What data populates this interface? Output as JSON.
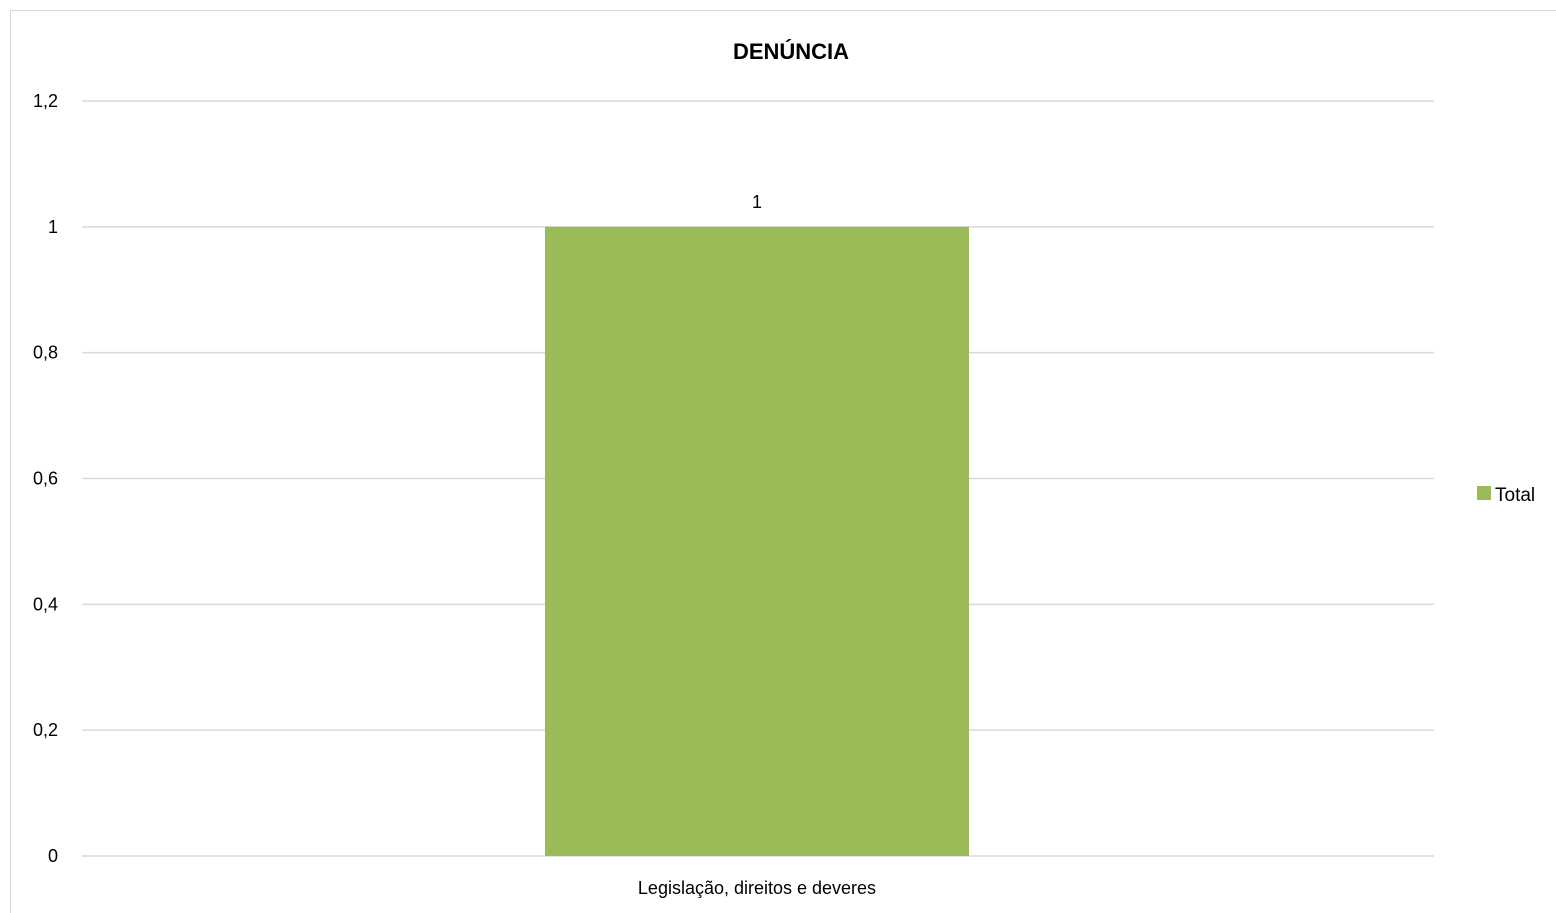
{
  "chart_data": {
    "type": "bar",
    "title": "DENÚNCIA",
    "categories": [
      "Legislação, direitos e deveres"
    ],
    "series": [
      {
        "name": "Total",
        "values": [
          1
        ],
        "color": "#9bbb59"
      }
    ],
    "data_labels": [
      "1"
    ],
    "ylim": [
      0,
      1.2
    ],
    "yticks": [
      0,
      0.2,
      0.4,
      0.6,
      0.8,
      1,
      1.2
    ],
    "ytick_labels": [
      "0",
      "0,2",
      "0,4",
      "0,6",
      "0,8",
      "1",
      "1,2"
    ],
    "grid": true,
    "gridline_color": "#d9d9d9",
    "legend_position": "right"
  }
}
